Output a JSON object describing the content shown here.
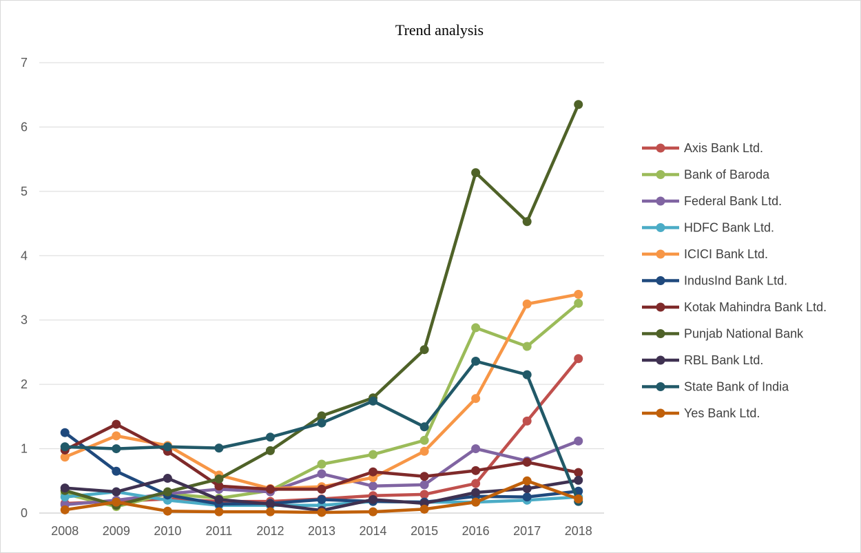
{
  "chart_data": {
    "type": "line",
    "title": "Trend analysis",
    "xlabel": "",
    "ylabel": "",
    "x": [
      "2008",
      "2009",
      "2010",
      "2011",
      "2012",
      "2013",
      "2014",
      "2015",
      "2016",
      "2017",
      "2018"
    ],
    "ylim": [
      0,
      7
    ],
    "yticks": [
      "0",
      "1",
      "2",
      "3",
      "4",
      "5",
      "6",
      "7"
    ],
    "grid": "horizontal",
    "legend_position": "right",
    "series": [
      {
        "name": "Axis Bank Ltd.",
        "color": "#c0504d",
        "values": [
          0.15,
          0.18,
          0.22,
          0.18,
          0.18,
          0.22,
          0.27,
          0.29,
          0.46,
          1.43,
          2.4
        ]
      },
      {
        "name": "Bank of Baroda",
        "color": "#9bbb59",
        "values": [
          0.3,
          0.1,
          0.3,
          0.23,
          0.35,
          0.76,
          0.91,
          1.13,
          2.88,
          2.59,
          3.26
        ]
      },
      {
        "name": "Federal Bank Ltd.",
        "color": "#8064a2",
        "values": [
          0.13,
          0.2,
          0.3,
          0.37,
          0.33,
          0.61,
          0.42,
          0.44,
          1.0,
          0.81,
          1.12
        ]
      },
      {
        "name": "HDFC Bank Ltd.",
        "color": "#4bacc6",
        "values": [
          0.25,
          0.33,
          0.2,
          0.12,
          0.12,
          0.12,
          0.18,
          0.17,
          0.17,
          0.2,
          0.25
        ]
      },
      {
        "name": "ICICI Bank Ltd.",
        "color": "#f79646",
        "values": [
          0.87,
          1.2,
          1.05,
          0.59,
          0.38,
          0.41,
          0.55,
          0.96,
          1.78,
          3.25,
          3.4
        ]
      },
      {
        "name": "IndusInd Bank Ltd.",
        "color": "#1f497d",
        "values": [
          1.25,
          0.65,
          0.28,
          0.14,
          0.15,
          0.21,
          0.18,
          0.17,
          0.26,
          0.25,
          0.34
        ]
      },
      {
        "name": "Kotak Mahindra Bank Ltd.",
        "color": "#7f2a2a",
        "values": [
          0.98,
          1.38,
          0.96,
          0.42,
          0.37,
          0.37,
          0.64,
          0.57,
          0.66,
          0.79,
          0.63
        ]
      },
      {
        "name": "Punjab National Bank",
        "color": "#4f6228",
        "values": [
          0.35,
          0.12,
          0.33,
          0.53,
          0.97,
          1.51,
          1.79,
          2.54,
          5.29,
          4.53,
          6.35
        ]
      },
      {
        "name": "RBL Bank Ltd.",
        "color": "#3f3151",
        "values": [
          0.39,
          0.33,
          0.54,
          0.21,
          0.14,
          0.04,
          0.21,
          0.15,
          0.32,
          0.38,
          0.51
        ]
      },
      {
        "name": "State Bank of India",
        "color": "#215968",
        "values": [
          1.03,
          1.0,
          1.03,
          1.01,
          1.18,
          1.4,
          1.74,
          1.34,
          2.36,
          2.15,
          0.18
        ]
      },
      {
        "name": "Yes Bank Ltd.",
        "color": "#c0600a",
        "values": [
          0.05,
          0.17,
          0.03,
          0.02,
          0.02,
          0.01,
          0.02,
          0.06,
          0.17,
          0.5,
          0.22
        ]
      }
    ]
  }
}
